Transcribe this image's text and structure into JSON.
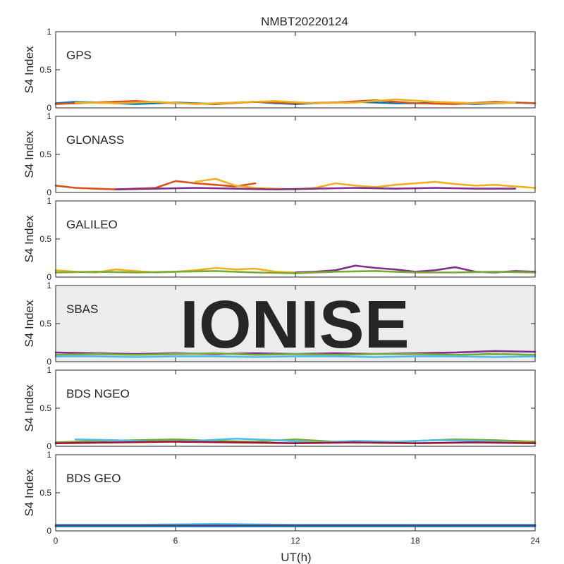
{
  "title": "NMBT20220124",
  "watermark": "IONISE",
  "xlabel": "UT(h)",
  "chart_data": {
    "type": "line",
    "title": "NMBT20220124",
    "xlabel": "UT(h)",
    "xlim": [
      0,
      24
    ],
    "xticks": [
      0,
      6,
      12,
      18,
      24
    ],
    "ylim": [
      0,
      1
    ],
    "yticks": [
      0,
      0.5,
      1
    ],
    "ytick_labels": [
      "0",
      "0.5",
      "1"
    ],
    "grid": false,
    "legend": "none",
    "series_colors": [
      "#0072BD",
      "#D95319",
      "#EDB120",
      "#7E2F8E",
      "#77AC30",
      "#4DBEEE",
      "#A2142F"
    ],
    "panels": [
      {
        "label": "GPS",
        "ylabel": "S4 Index",
        "series": [
          {
            "x": [
              0,
              1,
              2,
              3,
              4,
              5,
              6,
              7,
              8,
              9,
              10,
              11,
              12,
              13,
              14,
              15,
              16,
              17,
              18,
              19,
              20,
              21,
              22,
              23,
              24
            ],
            "y": [
              0.06,
              0.08,
              0.07,
              0.06,
              0.05,
              0.06,
              0.07,
              0.06,
              0.05,
              0.07,
              0.08,
              0.06,
              0.05,
              0.06,
              0.07,
              0.08,
              0.07,
              0.06,
              0.06,
              0.07,
              0.06,
              0.05,
              0.06,
              0.07,
              0.06
            ]
          },
          {
            "x": [
              0,
              2,
              4,
              6,
              8,
              10,
              12,
              14,
              16,
              18,
              20,
              22,
              24
            ],
            "y": [
              0.05,
              0.07,
              0.09,
              0.06,
              0.05,
              0.08,
              0.06,
              0.07,
              0.1,
              0.06,
              0.05,
              0.08,
              0.06
            ]
          },
          {
            "x": [
              1,
              3,
              5,
              7,
              9,
              11,
              13,
              15,
              17,
              19,
              21,
              23
            ],
            "y": [
              0.07,
              0.06,
              0.08,
              0.05,
              0.07,
              0.09,
              0.06,
              0.07,
              0.11,
              0.08,
              0.06,
              0.07
            ]
          }
        ]
      },
      {
        "label": "GLONASS",
        "ylabel": "S4 Index",
        "series": [
          {
            "x": [
              0,
              1,
              2,
              3,
              4,
              5,
              6,
              7,
              8,
              9,
              10
            ],
            "y": [
              0.09,
              0.06,
              0.05,
              0.04,
              0.05,
              0.06,
              0.15,
              0.12,
              0.1,
              0.08,
              0.12
            ]
          },
          {
            "x": [
              7,
              8,
              9,
              10,
              11,
              12,
              13,
              14,
              15,
              16,
              17,
              18,
              19,
              20,
              21,
              22,
              23,
              24
            ],
            "y": [
              0.14,
              0.18,
              0.09,
              0.06,
              0.05,
              0.04,
              0.06,
              0.12,
              0.09,
              0.07,
              0.1,
              0.12,
              0.14,
              0.11,
              0.09,
              0.1,
              0.08,
              0.06
            ]
          },
          {
            "x": [
              3,
              5,
              7,
              9,
              11,
              13,
              15,
              17,
              19,
              21,
              23
            ],
            "y": [
              0.04,
              0.05,
              0.06,
              0.05,
              0.04,
              0.05,
              0.06,
              0.05,
              0.06,
              0.05,
              0.05
            ]
          }
        ]
      },
      {
        "label": "GALILEO",
        "ylabel": "S4 Index",
        "series": [
          {
            "x": [
              0,
              1,
              2,
              3,
              4,
              5,
              6,
              7,
              8,
              9,
              10,
              11,
              12
            ],
            "y": [
              0.09,
              0.07,
              0.06,
              0.1,
              0.08,
              0.06,
              0.07,
              0.09,
              0.12,
              0.1,
              0.11,
              0.07,
              0.06
            ]
          },
          {
            "x": [
              12,
              13,
              14,
              15,
              16,
              17,
              18,
              19,
              20,
              21,
              22,
              23,
              24
            ],
            "y": [
              0.06,
              0.07,
              0.09,
              0.15,
              0.12,
              0.1,
              0.07,
              0.09,
              0.13,
              0.07,
              0.06,
              0.08,
              0.07
            ]
          },
          {
            "x": [
              0,
              2,
              4,
              6,
              8,
              10,
              12,
              14,
              16,
              18,
              20,
              22,
              24
            ],
            "y": [
              0.06,
              0.07,
              0.06,
              0.07,
              0.08,
              0.06,
              0.05,
              0.07,
              0.08,
              0.06,
              0.06,
              0.07,
              0.06
            ]
          }
        ]
      },
      {
        "label": "SBAS",
        "ylabel": "S4 Index",
        "series": [
          {
            "x": [
              0,
              2,
              4,
              6,
              8,
              10,
              12,
              14,
              16,
              18,
              20,
              22,
              24
            ],
            "y": [
              0.12,
              0.11,
              0.1,
              0.11,
              0.1,
              0.11,
              0.1,
              0.11,
              0.1,
              0.11,
              0.12,
              0.14,
              0.13
            ]
          },
          {
            "x": [
              0,
              2,
              4,
              6,
              8,
              10,
              12,
              14,
              16,
              18,
              20,
              22,
              24
            ],
            "y": [
              0.09,
              0.1,
              0.09,
              0.1,
              0.11,
              0.09,
              0.1,
              0.09,
              0.1,
              0.1,
              0.09,
              0.1,
              0.09
            ]
          },
          {
            "x": [
              0,
              2,
              4,
              6,
              8,
              10,
              12,
              14,
              16,
              18,
              20,
              22,
              24
            ],
            "y": [
              0.07,
              0.07,
              0.06,
              0.07,
              0.07,
              0.06,
              0.07,
              0.07,
              0.06,
              0.07,
              0.07,
              0.06,
              0.07
            ]
          }
        ]
      },
      {
        "label": "BDS NGEO",
        "ylabel": "S4 Index",
        "series": [
          {
            "x": [
              0,
              2,
              4,
              6,
              8,
              10,
              12,
              14,
              16,
              18,
              20,
              22,
              24
            ],
            "y": [
              0.05,
              0.07,
              0.08,
              0.09,
              0.07,
              0.06,
              0.09,
              0.06,
              0.05,
              0.07,
              0.09,
              0.08,
              0.06
            ]
          },
          {
            "x": [
              1,
              3,
              5,
              7,
              9,
              11,
              13,
              15,
              17,
              19,
              21,
              23
            ],
            "y": [
              0.09,
              0.08,
              0.06,
              0.07,
              0.1,
              0.08,
              0.05,
              0.07,
              0.06,
              0.08,
              0.07,
              0.05
            ]
          },
          {
            "x": [
              0,
              3,
              6,
              9,
              12,
              15,
              18,
              21,
              24
            ],
            "y": [
              0.04,
              0.05,
              0.06,
              0.05,
              0.04,
              0.05,
              0.04,
              0.05,
              0.04
            ]
          }
        ]
      },
      {
        "label": "BDS GEO",
        "ylabel": "S4 Index",
        "series": [
          {
            "x": [
              0,
              4,
              8,
              12,
              16,
              20,
              24
            ],
            "y": [
              0.08,
              0.08,
              0.09,
              0.08,
              0.08,
              0.08,
              0.08
            ]
          },
          {
            "x": [
              0,
              4,
              8,
              12,
              16,
              20,
              24
            ],
            "y": [
              0.07,
              0.07,
              0.07,
              0.07,
              0.07,
              0.07,
              0.07
            ]
          },
          {
            "x": [
              0,
              4,
              8,
              12,
              16,
              20,
              24
            ],
            "y": [
              0.06,
              0.06,
              0.06,
              0.06,
              0.06,
              0.06,
              0.06
            ]
          }
        ]
      }
    ]
  }
}
